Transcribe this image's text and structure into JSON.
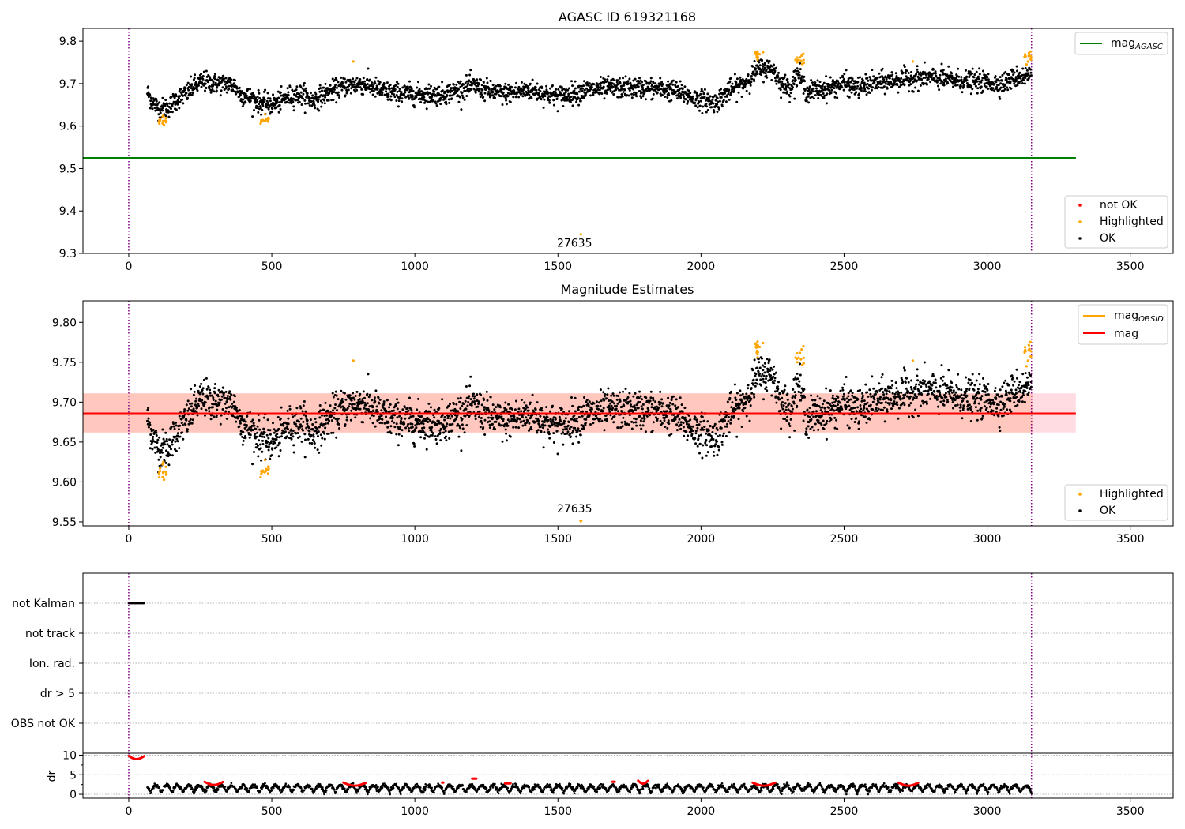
{
  "colors": {
    "ok": "#000000",
    "highlighted": "#ffa500",
    "not_ok": "#ff0000",
    "agasc_line": "#008000",
    "mag_line": "#ff0000",
    "mag_obsid": "#ffa500",
    "band_pink": "#ffc0cb",
    "band_orange": "#ffa07a",
    "vline": "#800080",
    "grid": "#b0b0b0"
  },
  "chart_data": [
    {
      "type": "scatter",
      "title": "AGASC ID 619321168",
      "xlim": [
        -160,
        3650
      ],
      "ylim": [
        9.3,
        9.83
      ],
      "x_ticks": [
        0,
        500,
        1000,
        1500,
        2000,
        2500,
        3000,
        3500
      ],
      "y_ticks": [
        9.3,
        9.4,
        9.5,
        9.6,
        9.7,
        9.8
      ],
      "y_tick_labels": [
        "9.3",
        "9.4",
        "9.5",
        "9.6",
        "9.7",
        "9.8"
      ],
      "hlines": [
        {
          "name": "mag_AGASC",
          "y": 9.525,
          "x_range": [
            -160,
            3310
          ]
        }
      ],
      "vlines": [
        0,
        3155
      ],
      "annotations": [
        {
          "text": "27635",
          "x": 1580,
          "y": 9.325,
          "marker_y": 9.345
        }
      ],
      "legend_upper": {
        "position": "top-right",
        "entries": [
          {
            "base": "mag",
            "sub": "AGASC"
          }
        ]
      },
      "legend_lower": {
        "position": "bottom-right",
        "entries": [
          "not OK",
          "Highlighted",
          "OK"
        ]
      },
      "series": [
        {
          "name": "OK",
          "trend": [
            [
              65,
              9.68
            ],
            [
              85,
              9.655
            ],
            [
              110,
              9.64
            ],
            [
              140,
              9.645
            ],
            [
              170,
              9.665
            ],
            [
              200,
              9.675
            ],
            [
              230,
              9.695
            ],
            [
              260,
              9.705
            ],
            [
              300,
              9.7
            ],
            [
              340,
              9.7
            ],
            [
              370,
              9.695
            ],
            [
              390,
              9.675
            ],
            [
              430,
              9.665
            ],
            [
              460,
              9.655
            ],
            [
              490,
              9.65
            ],
            [
              520,
              9.655
            ],
            [
              560,
              9.67
            ],
            [
              610,
              9.675
            ],
            [
              640,
              9.66
            ],
            [
              700,
              9.68
            ],
            [
              760,
              9.695
            ],
            [
              820,
              9.7
            ],
            [
              900,
              9.68
            ],
            [
              1000,
              9.675
            ],
            [
              1100,
              9.675
            ],
            [
              1200,
              9.695
            ],
            [
              1300,
              9.675
            ],
            [
              1400,
              9.685
            ],
            [
              1500,
              9.67
            ],
            [
              1600,
              9.685
            ],
            [
              1700,
              9.69
            ],
            [
              1800,
              9.69
            ],
            [
              1900,
              9.685
            ],
            [
              1980,
              9.665
            ],
            [
              2050,
              9.655
            ],
            [
              2100,
              9.685
            ],
            [
              2150,
              9.7
            ],
            [
              2200,
              9.735
            ],
            [
              2250,
              9.735
            ],
            [
              2280,
              9.7
            ],
            [
              2310,
              9.69
            ],
            [
              2340,
              9.725
            ],
            [
              2370,
              9.68
            ],
            [
              2450,
              9.69
            ],
            [
              2500,
              9.7
            ],
            [
              2550,
              9.69
            ],
            [
              2600,
              9.7
            ],
            [
              2700,
              9.71
            ],
            [
              2780,
              9.715
            ],
            [
              2850,
              9.71
            ],
            [
              2950,
              9.705
            ],
            [
              3050,
              9.7
            ],
            [
              3100,
              9.715
            ],
            [
              3155,
              9.72
            ]
          ],
          "noise": 0.012
        },
        {
          "name": "Highlighted",
          "clusters": [
            [
              120,
              9.612
            ],
            [
              475,
              9.613
            ],
            [
              2205,
              9.765
            ],
            [
              2345,
              9.755
            ],
            [
              3140,
              9.763
            ]
          ],
          "singles": [
            [
              785,
              9.752
            ],
            [
              2740,
              9.752
            ],
            [
              3145,
              9.765
            ]
          ]
        }
      ]
    },
    {
      "type": "scatter",
      "title": "Magnitude Estimates",
      "xlim": [
        -160,
        3650
      ],
      "ylim": [
        9.545,
        9.827
      ],
      "x_ticks": [
        0,
        500,
        1000,
        1500,
        2000,
        2500,
        3000,
        3500
      ],
      "y_ticks": [
        9.55,
        9.6,
        9.65,
        9.7,
        9.75,
        9.8
      ],
      "y_tick_labels": [
        "9.55",
        "9.60",
        "9.65",
        "9.70",
        "9.75",
        "9.80"
      ],
      "mag": 9.686,
      "band_pink": [
        9.662,
        9.711
      ],
      "band_orange": [
        9.662,
        9.711
      ],
      "band_orange_x": [
        -160,
        3160
      ],
      "band_pink_x": [
        -160,
        3310
      ],
      "vlines": [
        0,
        3155
      ],
      "annotations": [
        {
          "text": "27635",
          "x": 1580,
          "y": 9.567,
          "marker_y": 9.549
        }
      ],
      "legend_upper": {
        "position": "top-right",
        "entries": [
          {
            "base": "mag",
            "sub": "OBSID"
          },
          {
            "base": "mag",
            "sub": ""
          }
        ]
      },
      "legend_lower": {
        "position": "bottom-right",
        "entries": [
          "Highlighted",
          "OK"
        ]
      }
    },
    {
      "type": "scatter",
      "title": "",
      "xlim": [
        -160,
        3650
      ],
      "x_ticks": [
        0,
        500,
        1000,
        1500,
        2000,
        2500,
        3000,
        3500
      ],
      "flag_categories": [
        "not Kalman",
        "not track",
        "Ion. rad.",
        "dr > 5",
        "OBS not OK"
      ],
      "flag_points": {
        "not Kalman": [
          [
            0,
            55
          ]
        ]
      },
      "dr_ylabel": "dr",
      "dr_y_ticks": [
        0,
        5,
        10
      ],
      "dr_ylim": [
        -1,
        10.5
      ],
      "dr_red_segments": [
        [
          0,
          55,
          9.8
        ],
        [
          265,
          330,
          3.2
        ],
        [
          750,
          830,
          3.0
        ],
        [
          1095,
          1100,
          3.0
        ],
        [
          1200,
          1215,
          4.0
        ],
        [
          1315,
          1335,
          2.8
        ],
        [
          1690,
          1700,
          3.2
        ],
        [
          1780,
          1815,
          3.5
        ],
        [
          2180,
          2260,
          3.0
        ],
        [
          2690,
          2760,
          3.0
        ]
      ],
      "vlines": [
        0,
        3155
      ]
    }
  ]
}
